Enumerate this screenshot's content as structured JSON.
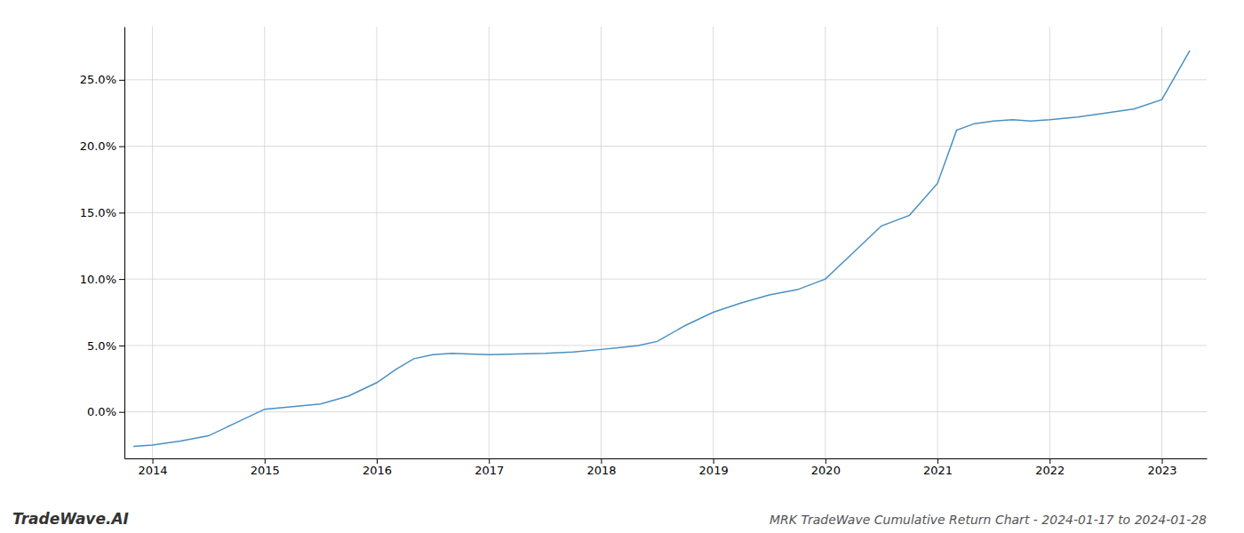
{
  "chart_data": {
    "type": "line",
    "title": "MRK TradeWave Cumulative Return Chart - 2024-01-17 to 2024-01-28",
    "annotations": [
      "TradeWave.AI"
    ],
    "color": "#4a90c4",
    "grid": true,
    "x": [
      2013.83,
      2014.0,
      2014.25,
      2014.5,
      2014.75,
      2015.0,
      2015.25,
      2015.5,
      2015.75,
      2016.0,
      2016.17,
      2016.33,
      2016.5,
      2016.67,
      2016.83,
      2017.0,
      2017.25,
      2017.5,
      2017.75,
      2018.0,
      2018.17,
      2018.33,
      2018.5,
      2018.75,
      2019.0,
      2019.25,
      2019.5,
      2019.75,
      2020.0,
      2020.25,
      2020.5,
      2020.75,
      2021.0,
      2021.17,
      2021.33,
      2021.5,
      2021.67,
      2021.83,
      2022.0,
      2022.25,
      2022.5,
      2022.75,
      2023.0,
      2023.25
    ],
    "values": [
      -2.6,
      -2.5,
      -2.2,
      -1.8,
      -0.8,
      0.2,
      0.4,
      0.6,
      1.2,
      2.2,
      3.2,
      4.0,
      4.3,
      4.4,
      4.35,
      4.3,
      4.35,
      4.4,
      4.5,
      4.7,
      4.85,
      5.0,
      5.3,
      6.5,
      7.5,
      8.2,
      8.8,
      9.2,
      10.0,
      12.0,
      14.0,
      14.8,
      17.2,
      21.2,
      21.7,
      21.9,
      22.0,
      21.9,
      22.0,
      22.2,
      22.5,
      22.8,
      23.5,
      27.2
    ],
    "xlim": [
      2013.75,
      2023.4
    ],
    "ylim": [
      -3.5,
      29.0
    ],
    "xticks": [
      2014,
      2015,
      2016,
      2017,
      2018,
      2019,
      2020,
      2021,
      2022,
      2023
    ],
    "yticks": [
      {
        "value": 0.0,
        "label": "0.0%"
      },
      {
        "value": 5.0,
        "label": "5.0%"
      },
      {
        "value": 10.0,
        "label": "10.0%"
      },
      {
        "value": 15.0,
        "label": "15.0%"
      },
      {
        "value": 20.0,
        "label": "20.0%"
      },
      {
        "value": 25.0,
        "label": "25.0%"
      }
    ]
  }
}
